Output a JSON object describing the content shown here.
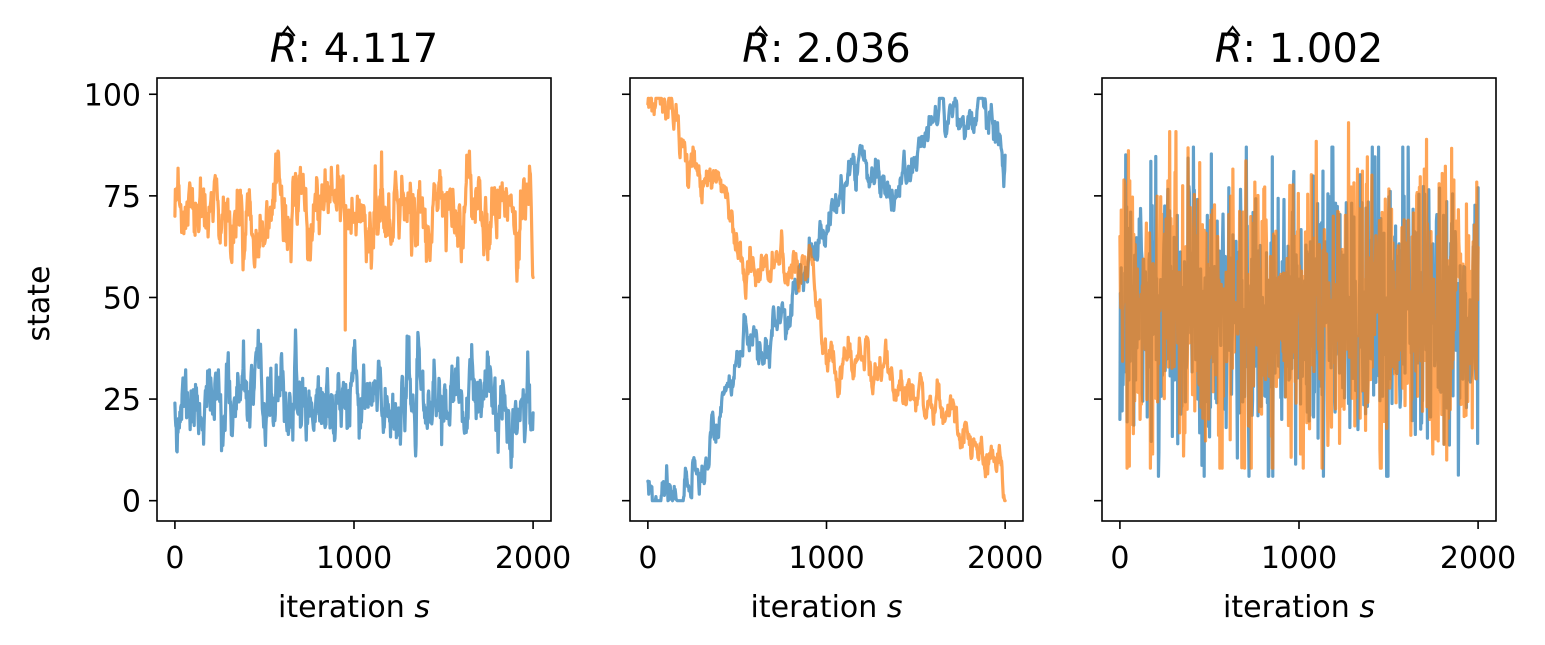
{
  "chart_data": [
    {
      "type": "line",
      "title": "R̂: 4.117",
      "title_symbol": "R",
      "title_value": ": 4.117",
      "xlabel": "iteration",
      "xlabel_symbol": "s",
      "ylabel": "state",
      "xlim": [
        -100,
        2100
      ],
      "ylim": [
        -5,
        104
      ],
      "xticks": [
        0,
        1000,
        2000
      ],
      "xtick_labels": [
        "0",
        "1000",
        "2000"
      ],
      "yticks": [
        0,
        25,
        50,
        75,
        100
      ],
      "ytick_labels": [
        "0",
        "25",
        "50",
        "75",
        "100"
      ],
      "grid": false,
      "colors": [
        "#1f77b4",
        "#ff7f0e"
      ],
      "series": [
        {
          "gen": {
            "n": 800,
            "mode": "stationary",
            "mean": 24,
            "sd": 5,
            "rho": 0.75,
            "min": 8,
            "max": 42,
            "seed": 11,
            "start": 24
          },
          "values": []
        },
        {
          "gen": {
            "n": 800,
            "mode": "stationary",
            "mean": 70,
            "sd": 5,
            "rho": 0.75,
            "min": 54,
            "max": 86,
            "seed": 23,
            "start": 70,
            "spikes": [
              [
                380,
                42
              ]
            ]
          },
          "values": []
        }
      ]
    },
    {
      "type": "line",
      "title": "R̂: 2.036",
      "title_symbol": "R",
      "title_value": ": 2.036",
      "xlabel": "iteration",
      "xlabel_symbol": "s",
      "xlim": [
        -100,
        2100
      ],
      "ylim": [
        -5,
        104
      ],
      "xticks": [
        0,
        1000,
        2000
      ],
      "xtick_labels": [
        "0",
        "1000",
        "2000"
      ],
      "yticks": [
        0,
        25,
        50,
        75,
        100
      ],
      "ytick_labels": [],
      "grid": false,
      "colors": [
        "#1f77b4",
        "#ff7f0e"
      ],
      "series": [
        {
          "gen": {
            "n": 800,
            "mode": "trend",
            "sd": 1.6,
            "seed": 37,
            "min": 0,
            "max": 99,
            "path": [
              [
                0,
                3
              ],
              [
                200,
                2
              ],
              [
                300,
                8
              ],
              [
                420,
                26
              ],
              [
                560,
                40
              ],
              [
                640,
                37
              ],
              [
                780,
                48
              ],
              [
                950,
                62
              ],
              [
                1050,
                72
              ],
              [
                1200,
                86
              ],
              [
                1300,
                80
              ],
              [
                1400,
                73
              ],
              [
                1480,
                84
              ],
              [
                1600,
                96
              ],
              [
                1760,
                93
              ],
              [
                1880,
                98
              ],
              [
                2000,
                85
              ]
            ]
          },
          "values": []
        },
        {
          "gen": {
            "n": 800,
            "mode": "trend",
            "sd": 1.6,
            "seed": 53,
            "min": 0,
            "max": 99,
            "path": [
              [
                0,
                96
              ],
              [
                160,
                96
              ],
              [
                220,
                80
              ],
              [
                420,
                77
              ],
              [
                560,
                58
              ],
              [
                640,
                60
              ],
              [
                780,
                57
              ],
              [
                900,
                59
              ],
              [
                980,
                34
              ],
              [
                1200,
                33
              ],
              [
                1340,
                31
              ],
              [
                1450,
                27
              ],
              [
                1600,
                27
              ],
              [
                1750,
                14
              ],
              [
                1880,
                10
              ],
              [
                1980,
                8
              ],
              [
                2000,
                0
              ]
            ]
          },
          "values": []
        }
      ]
    },
    {
      "type": "line",
      "title": "R̂: 1.002",
      "title_symbol": "R",
      "title_value": ": 1.002",
      "xlabel": "iteration",
      "xlabel_symbol": "s",
      "xlim": [
        -100,
        2100
      ],
      "ylim": [
        -5,
        104
      ],
      "xticks": [
        0,
        1000,
        2000
      ],
      "xtick_labels": [
        "0",
        "1000",
        "2000"
      ],
      "yticks": [
        0,
        25,
        50,
        75,
        100
      ],
      "ytick_labels": [],
      "grid": false,
      "colors": [
        "#1f77b4",
        "#ff7f0e"
      ],
      "series": [
        {
          "gen": {
            "n": 800,
            "mode": "stationary",
            "mean": 47,
            "sd": 17,
            "rho": 0.1,
            "min": 6,
            "max": 87,
            "seed": 71,
            "start": 20
          },
          "values": []
        },
        {
          "gen": {
            "n": 800,
            "mode": "stationary",
            "mean": 47,
            "sd": 17,
            "rho": 0.1,
            "min": 8,
            "max": 93,
            "seed": 89,
            "start": 65
          },
          "values": []
        }
      ]
    }
  ]
}
